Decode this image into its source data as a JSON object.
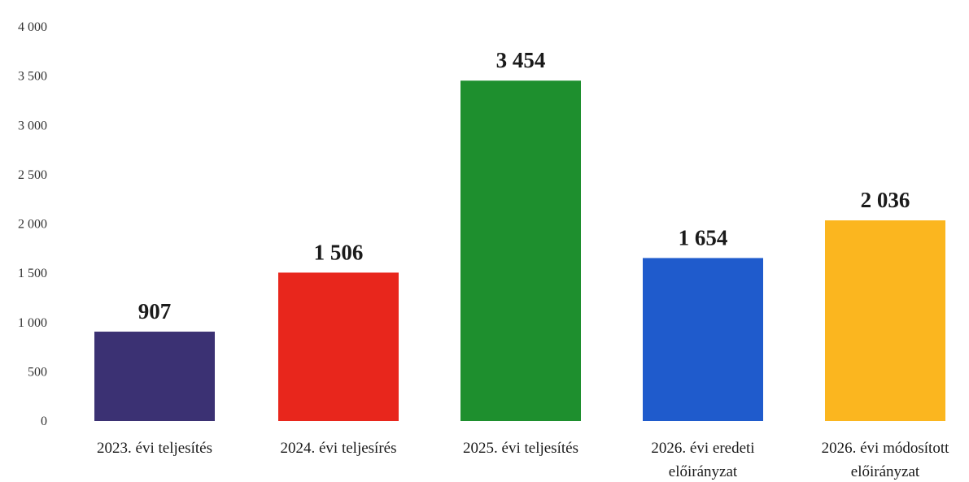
{
  "chart_data": {
    "type": "bar",
    "title": "",
    "xlabel": "",
    "ylabel": "",
    "ylim": [
      0,
      4000
    ],
    "yticks": [
      0,
      500,
      1000,
      1500,
      2000,
      2500,
      3000,
      3500,
      4000
    ],
    "ytick_labels": [
      "0",
      "500",
      "1 000",
      "1 500",
      "2 000",
      "2 500",
      "3 000",
      "3 500",
      "4 000"
    ],
    "grid": false,
    "legend": "none",
    "categories": [
      [
        "2023. évi teljesítés"
      ],
      [
        "2024. évi teljesírés"
      ],
      [
        "2025. évi teljesítés"
      ],
      [
        "2026. évi eredeti",
        "előirányzat"
      ],
      [
        "2026. évi módosított",
        "előirányzat"
      ]
    ],
    "values": [
      907,
      1506,
      3454,
      1654,
      2036
    ],
    "value_labels": [
      "907",
      "1 506",
      "3 454",
      "1 654",
      "2 036"
    ],
    "colors": [
      "#3b3173",
      "#e8261c",
      "#1e8f2e",
      "#1f5bcc",
      "#fbb61f"
    ]
  }
}
